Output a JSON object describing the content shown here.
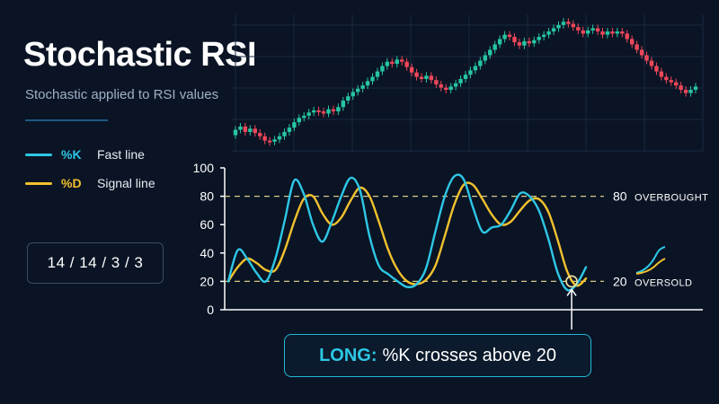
{
  "header": {
    "title": "Stochastic RSI",
    "subtitle": "Stochastic applied to RSI values"
  },
  "legend": [
    {
      "key": "%K",
      "label": "Fast line",
      "color": "#2ec7e6"
    },
    {
      "key": "%D",
      "label": "Signal line",
      "color": "#f2c12e"
    }
  ],
  "settings": {
    "params": "14 / 14 / 3 / 3"
  },
  "callout": {
    "highlight": "LONG:",
    "text": "%K crosses above 20"
  },
  "colors": {
    "up": "#26c6a2",
    "down": "#f0475a",
    "neutral": "#9aa4b2",
    "grid": "#1a2840",
    "level": "#d8c98a",
    "marker": "#f2e6a6"
  },
  "chart_data": [
    {
      "type": "candlestick",
      "title": "",
      "series": [],
      "values": [
        [
          0.0,
          0.5
        ],
        [
          0.5,
          0.8
        ],
        [
          0.8,
          0.3
        ],
        [
          0.3,
          0.6
        ],
        [
          0.6,
          0.2
        ],
        [
          0.2,
          -0.1
        ],
        [
          -0.1,
          -0.5
        ],
        [
          -0.5,
          -0.6
        ],
        [
          -0.6,
          -0.4
        ],
        [
          -0.4,
          -0.1
        ],
        [
          -0.1,
          0.3
        ],
        [
          0.3,
          0.7
        ],
        [
          0.7,
          1.2
        ],
        [
          1.2,
          1.6
        ],
        [
          1.6,
          1.8
        ],
        [
          1.8,
          2.1
        ],
        [
          2.1,
          2.3
        ],
        [
          2.3,
          2.2
        ],
        [
          2.2,
          2.0
        ],
        [
          2.0,
          2.4
        ],
        [
          2.4,
          2.2
        ],
        [
          2.2,
          2.6
        ],
        [
          2.6,
          3.2
        ],
        [
          3.2,
          3.6
        ],
        [
          3.6,
          4.0
        ],
        [
          4.0,
          4.3
        ],
        [
          4.3,
          4.6
        ],
        [
          4.6,
          5.0
        ],
        [
          5.0,
          5.4
        ],
        [
          5.4,
          5.9
        ],
        [
          5.9,
          6.4
        ],
        [
          6.4,
          6.8
        ],
        [
          6.8,
          6.6
        ],
        [
          6.6,
          7.0
        ],
        [
          7.0,
          6.8
        ],
        [
          6.8,
          6.3
        ],
        [
          6.3,
          5.8
        ],
        [
          5.8,
          5.4
        ],
        [
          5.4,
          5.2
        ],
        [
          5.2,
          5.5
        ],
        [
          5.5,
          5.1
        ],
        [
          5.1,
          4.7
        ],
        [
          4.7,
          4.4
        ],
        [
          4.4,
          4.2
        ],
        [
          4.2,
          4.5
        ],
        [
          4.5,
          4.8
        ],
        [
          4.8,
          5.2
        ],
        [
          5.2,
          5.6
        ],
        [
          5.6,
          6.0
        ],
        [
          6.0,
          6.4
        ],
        [
          6.4,
          6.9
        ],
        [
          6.9,
          7.4
        ],
        [
          7.4,
          7.9
        ],
        [
          7.9,
          8.4
        ],
        [
          8.4,
          8.9
        ],
        [
          8.9,
          9.3
        ],
        [
          9.3,
          9.1
        ],
        [
          9.1,
          8.6
        ],
        [
          8.6,
          8.3
        ],
        [
          8.3,
          8.7
        ],
        [
          8.7,
          8.5
        ],
        [
          8.5,
          8.8
        ],
        [
          8.8,
          9.1
        ],
        [
          9.1,
          9.3
        ],
        [
          9.3,
          9.6
        ],
        [
          9.6,
          9.9
        ],
        [
          9.9,
          10.2
        ],
        [
          10.2,
          10.5
        ],
        [
          10.5,
          10.3
        ],
        [
          10.3,
          10.0
        ],
        [
          10.0,
          9.7
        ],
        [
          9.7,
          9.4
        ],
        [
          9.4,
          9.7
        ],
        [
          9.7,
          9.9
        ],
        [
          9.9,
          9.6
        ],
        [
          9.6,
          9.3
        ],
        [
          9.3,
          9.6
        ],
        [
          9.6,
          9.4
        ],
        [
          9.4,
          9.6
        ],
        [
          9.6,
          9.4
        ],
        [
          9.4,
          8.9
        ],
        [
          8.9,
          8.4
        ],
        [
          8.4,
          7.9
        ],
        [
          7.9,
          7.4
        ],
        [
          7.4,
          6.9
        ],
        [
          6.9,
          6.4
        ],
        [
          6.4,
          5.9
        ],
        [
          5.9,
          5.4
        ],
        [
          5.4,
          5.1
        ],
        [
          5.1,
          4.9
        ],
        [
          4.9,
          4.6
        ],
        [
          4.6,
          4.2
        ],
        [
          4.2,
          3.9
        ],
        [
          3.9,
          4.2
        ],
        [
          4.2,
          4.5
        ]
      ]
    },
    {
      "type": "line",
      "title": "",
      "ylim": [
        0,
        100
      ],
      "yticks": [
        100,
        80,
        60,
        40,
        20,
        0
      ],
      "series": [
        {
          "name": "%K",
          "color": "#2ec7e6",
          "values": [
            20,
            42,
            36,
            26,
            20,
            36,
            63,
            91,
            82,
            60,
            48,
            62,
            80,
            93,
            84,
            52,
            31,
            25,
            20,
            16,
            18,
            29,
            55,
            80,
            94,
            92,
            72,
            55,
            58,
            60,
            70,
            82,
            80,
            70,
            50,
            26,
            14,
            18,
            30
          ]
        },
        {
          "name": "%D",
          "color": "#f2c12e",
          "values": [
            20,
            30,
            36,
            33,
            28,
            28,
            42,
            62,
            78,
            80,
            68,
            60,
            65,
            77,
            86,
            80,
            62,
            42,
            28,
            20,
            18,
            21,
            31,
            52,
            74,
            88,
            88,
            78,
            67,
            60,
            62,
            70,
            77,
            78,
            69,
            49,
            27,
            17,
            22
          ]
        }
      ],
      "levels": [
        {
          "value": 80,
          "label": "80",
          "tag": "OVERBOUGHT"
        },
        {
          "value": 20,
          "label": "20",
          "tag": "OVERSOLD"
        }
      ]
    }
  ]
}
